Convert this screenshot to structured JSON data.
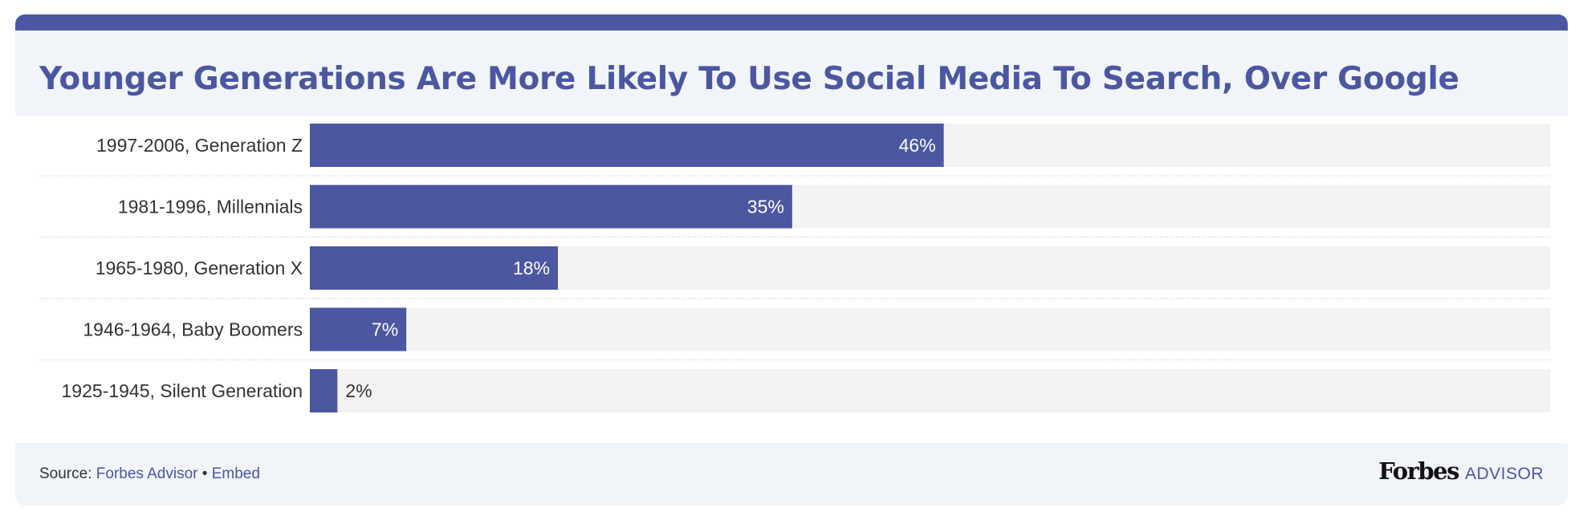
{
  "title": "Younger Generations Are More Likely To Use Social Media To Search, Over Google",
  "colors": {
    "accent": "#4b57a0",
    "track": "#f3f3f4",
    "header_bg": "#f1f4f9",
    "text": "#333333"
  },
  "chart_data": {
    "type": "bar",
    "orientation": "horizontal",
    "categories": [
      "1997-2006, Generation Z",
      "1981-1996, Millennials",
      "1965-1980, Generation X",
      "1946-1964, Baby Boomers",
      "1925-1945, Silent Generation"
    ],
    "values": [
      46,
      35,
      18,
      7,
      2
    ],
    "value_labels": [
      "46%",
      "35%",
      "18%",
      "7%",
      "2%"
    ],
    "xlim": [
      0,
      90
    ],
    "grid": false,
    "legend": "none"
  },
  "footer": {
    "source_prefix": "Source: ",
    "source_link": "Forbes Advisor",
    "separator": " • ",
    "embed_link": "Embed",
    "brand_name": "Forbes",
    "brand_sub": "ADVISOR"
  }
}
